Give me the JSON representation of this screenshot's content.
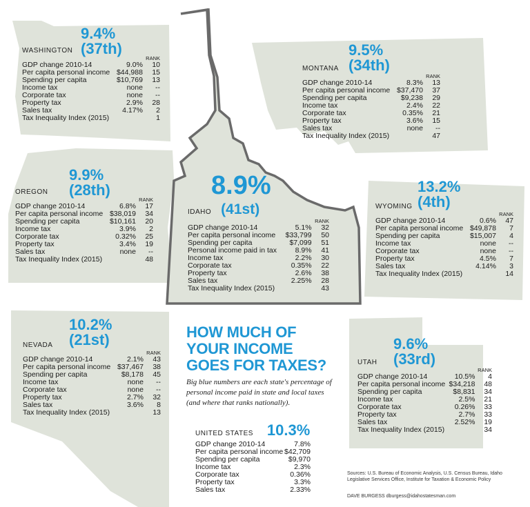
{
  "idaho": {
    "state": "IDAHO",
    "pct": "8.9%",
    "rank": "(41st)",
    "rank_header": "RANK",
    "rows": [
      {
        "label": "GDP change 2010-14",
        "value": "5.1%",
        "rank": "32"
      },
      {
        "label": "Per capita personal income",
        "value": "$33,799",
        "rank": "50"
      },
      {
        "label": "Spending per capita",
        "value": "$7,099",
        "rank": "51"
      },
      {
        "label": "Personal income paid in tax",
        "value": "8.9%",
        "rank": "41"
      },
      {
        "label": "Income tax",
        "value": "2.2%",
        "rank": "30"
      },
      {
        "label": "Corporate tax",
        "value": "0.35%",
        "rank": "22"
      },
      {
        "label": "Property tax",
        "value": "2.6%",
        "rank": "38"
      },
      {
        "label": "Sales tax",
        "value": "2.25%",
        "rank": "28"
      },
      {
        "label": "Tax Inequality Index (2015)",
        "value": "",
        "rank": "43"
      }
    ]
  },
  "washington": {
    "state": "WASHINGTON",
    "pct": "9.4%",
    "rank": "(37th)",
    "rank_header": "RANK",
    "rows": [
      {
        "label": "GDP change 2010-14",
        "value": "9.0%",
        "rank": "10"
      },
      {
        "label": "Per capita personal income",
        "value": "$44,988",
        "rank": "15"
      },
      {
        "label": "Spending per capita",
        "value": "$10,769",
        "rank": "13"
      },
      {
        "label": "Income tax",
        "value": "none",
        "rank": "--"
      },
      {
        "label": "Corporate tax",
        "value": "none",
        "rank": "--"
      },
      {
        "label": "Property tax",
        "value": "2.9%",
        "rank": "28"
      },
      {
        "label": "Sales tax",
        "value": "4.17%",
        "rank": "2"
      },
      {
        "label": "Tax Inequality Index (2015)",
        "value": "",
        "rank": "1"
      }
    ]
  },
  "montana": {
    "state": "MONTANA",
    "pct": "9.5%",
    "rank": "(34th)",
    "rank_header": "RANK",
    "rows": [
      {
        "label": "GDP change 2010-14",
        "value": "8.3%",
        "rank": "13"
      },
      {
        "label": "Per capita personal income",
        "value": "$37,470",
        "rank": "37"
      },
      {
        "label": "Spending per capita",
        "value": "$9,238",
        "rank": "29"
      },
      {
        "label": "Income tax",
        "value": "2.4%",
        "rank": "22"
      },
      {
        "label": "Corporate tax",
        "value": "0.35%",
        "rank": "21"
      },
      {
        "label": "Property tax",
        "value": "3.6%",
        "rank": "15"
      },
      {
        "label": "Sales tax",
        "value": "none",
        "rank": "--"
      },
      {
        "label": "Tax Inequality Index (2015)",
        "value": "",
        "rank": "47"
      }
    ]
  },
  "oregon": {
    "state": "OREGON",
    "pct": "9.9%",
    "rank": "(28th)",
    "rank_header": "RANK",
    "rows": [
      {
        "label": "GDP change 2010-14",
        "value": "6.8%",
        "rank": "17"
      },
      {
        "label": "Per capita personal income",
        "value": "$38,019",
        "rank": "34"
      },
      {
        "label": "Spending per capita",
        "value": "$10,161",
        "rank": "20"
      },
      {
        "label": "Income tax",
        "value": "3.9%",
        "rank": "2"
      },
      {
        "label": "Corporate tax",
        "value": "0.32%",
        "rank": "25"
      },
      {
        "label": "Property tax",
        "value": "3.4%",
        "rank": "19"
      },
      {
        "label": "Sales tax",
        "value": "none",
        "rank": "--"
      },
      {
        "label": "Tax Inequality Index (2015)",
        "value": "",
        "rank": "48"
      }
    ]
  },
  "wyoming": {
    "state": "WYOMING",
    "pct": "13.2%",
    "rank": "(4th)",
    "rank_header": "RANK",
    "rows": [
      {
        "label": "GDP change 2010-14",
        "value": "0.6%",
        "rank": "47"
      },
      {
        "label": "Per capita personal income",
        "value": "$49,878",
        "rank": "7"
      },
      {
        "label": "Spending per capita",
        "value": "$15,007",
        "rank": "4"
      },
      {
        "label": "Income tax",
        "value": "none",
        "rank": "--"
      },
      {
        "label": "Corporate tax",
        "value": "none",
        "rank": "--"
      },
      {
        "label": "Property tax",
        "value": "4.5%",
        "rank": "7"
      },
      {
        "label": "Sales tax",
        "value": "4.14%",
        "rank": "3"
      },
      {
        "label": "Tax Inequality Index (2015)",
        "value": "",
        "rank": "14"
      }
    ]
  },
  "nevada": {
    "state": "NEVADA",
    "pct": "10.2%",
    "rank": "(21st)",
    "rank_header": "RANK",
    "rows": [
      {
        "label": "GDP change 2010-14",
        "value": "2.1%",
        "rank": "43"
      },
      {
        "label": "Per capita personal income",
        "value": "$37,467",
        "rank": "38"
      },
      {
        "label": "Spending per capita",
        "value": "$8,178",
        "rank": "45"
      },
      {
        "label": "Income tax",
        "value": "none",
        "rank": "--"
      },
      {
        "label": "Corporate tax",
        "value": "none",
        "rank": "--"
      },
      {
        "label": "Property tax",
        "value": "2.7%",
        "rank": "32"
      },
      {
        "label": "Sales tax",
        "value": "3.6%",
        "rank": "8"
      },
      {
        "label": "Tax Inequality Index (2015)",
        "value": "",
        "rank": "13"
      }
    ]
  },
  "utah": {
    "state": "UTAH",
    "pct": "9.6%",
    "rank": "(33rd)",
    "rank_header": "RANK",
    "rows": [
      {
        "label": "GDP change 2010-14",
        "value": "10.5%",
        "rank": "4"
      },
      {
        "label": "Per capita personal income",
        "value": "$34,218",
        "rank": "48"
      },
      {
        "label": "Spending per capita",
        "value": "$8,831",
        "rank": "34"
      },
      {
        "label": "Income tax",
        "value": "2.5%",
        "rank": "21"
      },
      {
        "label": "Corporate tax",
        "value": "0.26%",
        "rank": "33"
      },
      {
        "label": "Property tax",
        "value": "2.7%",
        "rank": "33"
      },
      {
        "label": "Sales tax",
        "value": "2.52%",
        "rank": "19"
      },
      {
        "label": "Tax Inequality Index (2015)",
        "value": "",
        "rank": "34"
      }
    ]
  },
  "united_states": {
    "state": "UNITED STATES",
    "pct": "10.3%",
    "rows": [
      {
        "label": "GDP change 2010-14",
        "value": "7.8%"
      },
      {
        "label": "Per capita personal income",
        "value": "$42,709"
      },
      {
        "label": "Spending per capita",
        "value": "$9,970"
      },
      {
        "label": "Income tax",
        "value": "2.3%"
      },
      {
        "label": "Corporate tax",
        "value": "0.36%"
      },
      {
        "label": "Property tax",
        "value": "3.3%"
      },
      {
        "label": "Sales tax",
        "value": "2.33%"
      }
    ]
  },
  "headline": {
    "line1": "HOW MUCH OF",
    "line2": "YOUR INCOME",
    "line3": "GOES FOR TAXES?"
  },
  "intro": "Big blue numbers are each state's percentage of personal income paid in state and local taxes (and where that ranks nationally).",
  "sources": "Sources: U.S. Bureau of Economic Analysis, U.S. Census Bureau, Idaho Legislative Services Office, Institute for Taxation & Economic Policy",
  "credit": "DAVE BURGESS dburgess@idahostatesman.com",
  "colors": {
    "accent": "#1f97d4",
    "map_fill": "#dfe3da",
    "idaho_outline": "#6a6a6a"
  }
}
